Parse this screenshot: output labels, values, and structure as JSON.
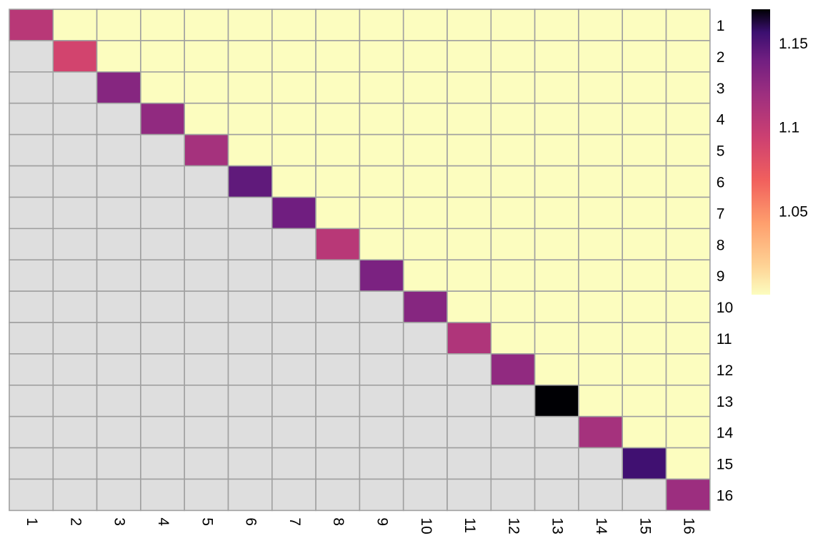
{
  "chart_data": {
    "type": "heatmap",
    "title": "",
    "xlabel": "",
    "ylabel": "",
    "x_tick_labels": [
      "1",
      "2",
      "3",
      "4",
      "5",
      "6",
      "7",
      "8",
      "9",
      "10",
      "11",
      "12",
      "13",
      "14",
      "15",
      "16"
    ],
    "y_tick_labels": [
      "1",
      "2",
      "3",
      "4",
      "5",
      "6",
      "7",
      "8",
      "9",
      "10",
      "11",
      "12",
      "13",
      "14",
      "15",
      "16"
    ],
    "diagonal_values": [
      1.105,
      1.09,
      1.13,
      1.125,
      1.115,
      1.145,
      1.14,
      1.105,
      1.135,
      1.13,
      1.11,
      1.125,
      1.17,
      1.115,
      1.155,
      1.12
    ],
    "upper_triangle_value": 1.0,
    "lower_triangle": "empty",
    "colorscale": "magma (reversed)",
    "colorbar": {
      "min": 1.0,
      "max": 1.17,
      "tick_values": [
        1.05,
        1.1,
        1.15
      ],
      "tick_labels": [
        "1.05",
        "1.1",
        "1.15"
      ],
      "placement": "right"
    },
    "x_tick_rotation": "vertical",
    "grid": true,
    "colors": {
      "empty_cell": "#dedede",
      "grid_line": "#a0a0a0",
      "low": "#fcfdbf",
      "high": "#000004"
    }
  }
}
